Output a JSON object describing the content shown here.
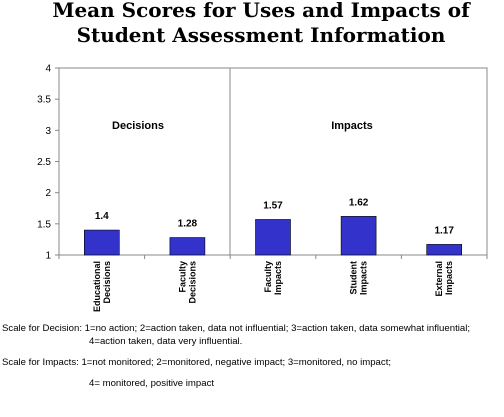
{
  "chart_data": {
    "type": "bar",
    "title_lines": [
      "Mean Scores for Uses and Impacts of",
      "Student Assessment Information"
    ],
    "categories": [
      [
        "Educational",
        "Decisions"
      ],
      [
        "Faculty",
        "Decisions"
      ],
      [
        "Faculty",
        "Impacts"
      ],
      [
        "Student",
        "Impacts"
      ],
      [
        "External",
        "Impacts"
      ]
    ],
    "values": [
      1.4,
      1.28,
      1.57,
      1.62,
      1.17
    ],
    "data_labels": [
      "1.4",
      "1.28",
      "1.57",
      "1.62",
      "1.17"
    ],
    "y_ticks": [
      "1",
      "1.5",
      "2",
      "2.5",
      "3",
      "3.5",
      "4"
    ],
    "ylim": [
      1,
      4
    ],
    "groups": [
      {
        "label": "Decisions",
        "categories": [
          0,
          1
        ]
      },
      {
        "label": "Impacts",
        "categories": [
          2,
          3,
          4
        ]
      }
    ],
    "xlabel": "",
    "ylabel": "",
    "grid": false,
    "legend": "none",
    "bar_color": "#3333cc"
  },
  "notes": {
    "decision_line1": "Scale for Decision: 1=no action; 2=action taken, data not influential;  3=action taken, data somewhat influential;",
    "decision_line2": "4=action taken, data very influential.",
    "impacts_line1": "Scale for Impacts:  1=not monitored; 2=monitored, negative impact; 3=monitored, no impact;",
    "impacts_line2": "4= monitored, positive impact"
  }
}
